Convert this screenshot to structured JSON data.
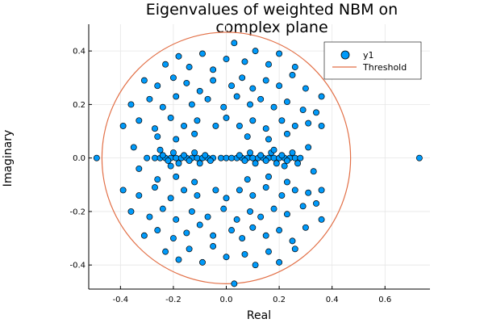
{
  "chart_data": {
    "type": "scatter",
    "title_lines": [
      "Eigenvalues of weighted NBM on",
      "complex plane"
    ],
    "xlabel": "Real",
    "ylabel": "Imaginary",
    "xlim": [
      -0.52,
      0.77
    ],
    "ylim": [
      -0.49,
      0.5
    ],
    "xticks": [
      "-0.4",
      "-0.2",
      "0.0",
      "0.2",
      "0.4",
      "0.6"
    ],
    "yticks": [
      "-0.4",
      "-0.2",
      "0.0",
      "0.2",
      "0.4"
    ],
    "xtick_values": [
      -0.4,
      -0.2,
      0.0,
      0.2,
      0.4,
      0.6
    ],
    "ytick_values": [
      -0.4,
      -0.2,
      0.0,
      0.2,
      0.4
    ],
    "grid": true,
    "legend_position": "top-right",
    "series": [
      {
        "name": "y1",
        "kind": "points",
        "color": "#009AFA",
        "points": [
          [
            -0.49,
            0.0
          ],
          [
            0.73,
            0.0
          ],
          [
            0.03,
            -0.47
          ],
          [
            0.03,
            0.43
          ],
          [
            -0.3,
            0.0
          ],
          [
            -0.27,
            0.0
          ],
          [
            -0.25,
            0.0
          ],
          [
            -0.23,
            0.0
          ],
          [
            -0.21,
            0.0
          ],
          [
            -0.19,
            0.0
          ],
          [
            -0.17,
            0.0
          ],
          [
            -0.15,
            0.0
          ],
          [
            -0.13,
            0.0
          ],
          [
            -0.11,
            0.0
          ],
          [
            -0.09,
            0.0
          ],
          [
            -0.07,
            0.0
          ],
          [
            -0.05,
            0.0
          ],
          [
            -0.02,
            0.0
          ],
          [
            0.0,
            0.0
          ],
          [
            0.02,
            0.0
          ],
          [
            0.04,
            0.0
          ],
          [
            0.06,
            0.0
          ],
          [
            0.08,
            0.0
          ],
          [
            0.1,
            0.0
          ],
          [
            0.12,
            0.0
          ],
          [
            0.14,
            0.0
          ],
          [
            0.16,
            0.0
          ],
          [
            0.18,
            0.0
          ],
          [
            0.2,
            0.0
          ],
          [
            0.22,
            0.0
          ],
          [
            0.24,
            0.0
          ],
          [
            0.26,
            0.0
          ],
          [
            0.28,
            0.0
          ],
          [
            -0.24,
            0.01
          ],
          [
            -0.2,
            0.02
          ],
          [
            -0.16,
            0.01
          ],
          [
            -0.12,
            0.02
          ],
          [
            -0.08,
            0.01
          ],
          [
            -0.22,
            -0.01
          ],
          [
            -0.18,
            -0.02
          ],
          [
            -0.14,
            -0.01
          ],
          [
            -0.1,
            -0.02
          ],
          [
            -0.06,
            -0.01
          ],
          [
            0.05,
            0.01
          ],
          [
            0.09,
            0.02
          ],
          [
            0.13,
            0.01
          ],
          [
            0.17,
            0.02
          ],
          [
            0.21,
            0.01
          ],
          [
            0.25,
            0.02
          ],
          [
            0.07,
            -0.01
          ],
          [
            0.11,
            -0.02
          ],
          [
            0.15,
            -0.01
          ],
          [
            0.19,
            -0.02
          ],
          [
            0.23,
            -0.01
          ],
          [
            0.27,
            -0.02
          ],
          [
            -0.25,
            0.03
          ],
          [
            -0.21,
            -0.03
          ],
          [
            0.18,
            0.03
          ],
          [
            0.22,
            -0.03
          ],
          [
            -0.35,
            0.04
          ],
          [
            -0.33,
            -0.04
          ],
          [
            0.31,
            0.04
          ],
          [
            0.33,
            -0.05
          ],
          [
            -0.18,
            0.38
          ],
          [
            -0.23,
            0.35
          ],
          [
            -0.14,
            0.34
          ],
          [
            -0.09,
            0.39
          ],
          [
            -0.05,
            0.33
          ],
          [
            0.0,
            0.37
          ],
          [
            0.07,
            0.36
          ],
          [
            0.11,
            0.4
          ],
          [
            0.16,
            0.35
          ],
          [
            0.2,
            0.39
          ],
          [
            0.26,
            0.34
          ],
          [
            -0.31,
            0.29
          ],
          [
            -0.26,
            0.27
          ],
          [
            -0.2,
            0.3
          ],
          [
            -0.15,
            0.28
          ],
          [
            -0.1,
            0.25
          ],
          [
            -0.05,
            0.29
          ],
          [
            0.02,
            0.27
          ],
          [
            0.06,
            0.3
          ],
          [
            0.1,
            0.26
          ],
          [
            0.15,
            0.29
          ],
          [
            0.2,
            0.27
          ],
          [
            0.25,
            0.31
          ],
          [
            0.3,
            0.26
          ],
          [
            0.36,
            0.23
          ],
          [
            -0.36,
            0.2
          ],
          [
            -0.29,
            0.22
          ],
          [
            -0.24,
            0.19
          ],
          [
            -0.19,
            0.23
          ],
          [
            -0.13,
            0.2
          ],
          [
            -0.07,
            0.22
          ],
          [
            -0.01,
            0.19
          ],
          [
            0.04,
            0.23
          ],
          [
            0.09,
            0.2
          ],
          [
            0.13,
            0.22
          ],
          [
            0.18,
            0.19
          ],
          [
            0.23,
            0.21
          ],
          [
            0.29,
            0.18
          ],
          [
            0.34,
            0.17
          ],
          [
            -0.39,
            0.12
          ],
          [
            -0.33,
            0.14
          ],
          [
            -0.27,
            0.11
          ],
          [
            -0.21,
            0.15
          ],
          [
            -0.16,
            0.12
          ],
          [
            -0.11,
            0.14
          ],
          [
            -0.04,
            0.12
          ],
          [
            0.0,
            0.15
          ],
          [
            0.05,
            0.12
          ],
          [
            0.1,
            0.14
          ],
          [
            0.15,
            0.11
          ],
          [
            0.21,
            0.14
          ],
          [
            0.26,
            0.12
          ],
          [
            0.31,
            0.13
          ],
          [
            0.36,
            0.12
          ],
          [
            -0.26,
            0.08
          ],
          [
            -0.19,
            0.07
          ],
          [
            -0.12,
            0.09
          ],
          [
            0.08,
            0.08
          ],
          [
            0.16,
            0.07
          ],
          [
            0.23,
            0.09
          ],
          [
            -0.18,
            -0.38
          ],
          [
            -0.23,
            -0.35
          ],
          [
            -0.14,
            -0.34
          ],
          [
            -0.09,
            -0.39
          ],
          [
            -0.05,
            -0.33
          ],
          [
            0.0,
            -0.37
          ],
          [
            0.07,
            -0.36
          ],
          [
            0.11,
            -0.4
          ],
          [
            0.16,
            -0.35
          ],
          [
            0.2,
            -0.39
          ],
          [
            0.26,
            -0.34
          ],
          [
            -0.31,
            -0.29
          ],
          [
            -0.26,
            -0.27
          ],
          [
            -0.2,
            -0.3
          ],
          [
            -0.15,
            -0.28
          ],
          [
            -0.1,
            -0.25
          ],
          [
            -0.05,
            -0.29
          ],
          [
            0.02,
            -0.27
          ],
          [
            0.06,
            -0.3
          ],
          [
            0.1,
            -0.26
          ],
          [
            0.15,
            -0.29
          ],
          [
            0.2,
            -0.27
          ],
          [
            0.25,
            -0.31
          ],
          [
            0.3,
            -0.26
          ],
          [
            0.36,
            -0.23
          ],
          [
            -0.36,
            -0.2
          ],
          [
            -0.29,
            -0.22
          ],
          [
            -0.24,
            -0.19
          ],
          [
            -0.19,
            -0.23
          ],
          [
            -0.13,
            -0.2
          ],
          [
            -0.07,
            -0.22
          ],
          [
            -0.01,
            -0.19
          ],
          [
            0.04,
            -0.23
          ],
          [
            0.09,
            -0.2
          ],
          [
            0.13,
            -0.22
          ],
          [
            0.18,
            -0.19
          ],
          [
            0.23,
            -0.21
          ],
          [
            0.29,
            -0.18
          ],
          [
            0.34,
            -0.17
          ],
          [
            -0.39,
            -0.12
          ],
          [
            -0.33,
            -0.14
          ],
          [
            -0.27,
            -0.11
          ],
          [
            -0.21,
            -0.15
          ],
          [
            -0.16,
            -0.12
          ],
          [
            -0.11,
            -0.14
          ],
          [
            -0.04,
            -0.12
          ],
          [
            0.0,
            -0.15
          ],
          [
            0.05,
            -0.12
          ],
          [
            0.1,
            -0.14
          ],
          [
            0.15,
            -0.11
          ],
          [
            0.21,
            -0.14
          ],
          [
            0.26,
            -0.12
          ],
          [
            0.31,
            -0.13
          ],
          [
            0.36,
            -0.12
          ],
          [
            -0.26,
            -0.08
          ],
          [
            -0.19,
            -0.07
          ],
          [
            -0.12,
            -0.09
          ],
          [
            0.08,
            -0.08
          ],
          [
            0.16,
            -0.07
          ],
          [
            0.23,
            -0.09
          ]
        ]
      },
      {
        "name": "Threshold",
        "kind": "circle",
        "color": "#E26F46",
        "center": [
          0.0,
          0.0
        ],
        "radius": 0.47
      }
    ]
  }
}
